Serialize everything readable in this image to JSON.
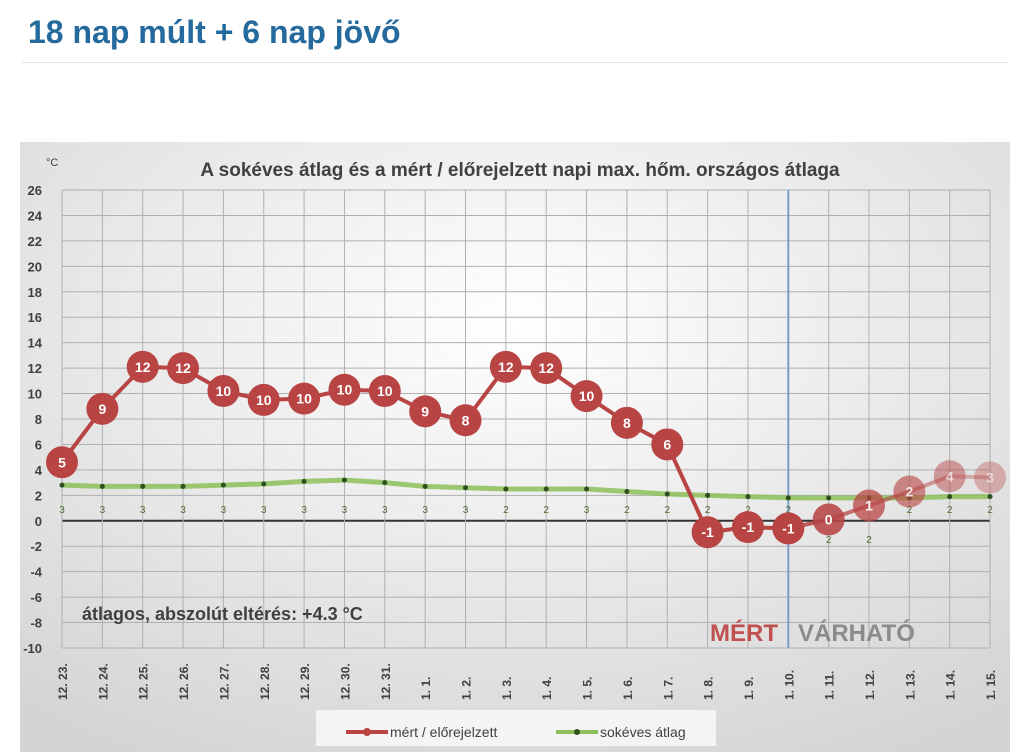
{
  "page": {
    "heading": "18 nap múlt + 6 nap jövő"
  },
  "chart_data": {
    "type": "line",
    "title": "A sokéves átlag és a mért / előrejelzett napi max. hőm. országos átlaga",
    "ylabel": "°C",
    "ylim": [
      -10,
      26
    ],
    "yticks": [
      26,
      24,
      22,
      20,
      18,
      16,
      14,
      12,
      10,
      8,
      6,
      4,
      2,
      0,
      -2,
      -4,
      -6,
      -8,
      -10
    ],
    "grid": true,
    "legend": "bottom",
    "categories": [
      "12. 23.",
      "12. 24.",
      "12. 25.",
      "12. 26.",
      "12. 27.",
      "12. 28.",
      "12. 29.",
      "12. 30.",
      "12. 31.",
      "1. 1.",
      "1. 2.",
      "1. 3.",
      "1. 4.",
      "1. 5.",
      "1. 6.",
      "1. 7.",
      "1. 8.",
      "1. 9.",
      "1. 10.",
      "1. 11.",
      "1. 12.",
      "1. 13.",
      "1. 14.",
      "1. 15."
    ],
    "series": [
      {
        "name": "mért / előrejelzett",
        "color": "#b84444",
        "values": [
          4.6,
          8.8,
          12.1,
          12.0,
          10.2,
          9.5,
          9.6,
          10.3,
          10.2,
          8.6,
          7.9,
          12.1,
          12.0,
          9.8,
          7.7,
          6.0,
          -0.9,
          -0.5,
          -0.6,
          0.1,
          1.2,
          2.3,
          3.5,
          3.4
        ],
        "labels": [
          "5",
          "9",
          "12",
          "12",
          "10",
          "10",
          "10",
          "10",
          "10",
          "9",
          "8",
          "12",
          "12",
          "10",
          "8",
          "6",
          "-1",
          "-1",
          "-1",
          "0",
          "1",
          "2",
          "4",
          "3"
        ]
      },
      {
        "name": "sokéves átlag",
        "color": "#8dc05a",
        "values": [
          2.8,
          2.7,
          2.7,
          2.7,
          2.8,
          2.9,
          3.1,
          3.2,
          3.0,
          2.7,
          2.6,
          2.5,
          2.5,
          2.5,
          2.3,
          2.1,
          2.0,
          1.9,
          1.8,
          1.8,
          1.8,
          1.8,
          1.9,
          1.9
        ],
        "labels": [
          "3",
          "3",
          "3",
          "3",
          "3",
          "3",
          "3",
          "3",
          "3",
          "3",
          "3",
          "2",
          "2",
          "3",
          "2",
          "2",
          "2",
          "2",
          "2",
          "2",
          "2",
          "2",
          "2",
          "2"
        ]
      }
    ],
    "forecast_start": "1. 10.",
    "annotation": "átlagos, abszolút eltérés:  +4.3 °C",
    "measured_label": "MÉRT",
    "forecast_label": "VÁRHATÓ"
  }
}
